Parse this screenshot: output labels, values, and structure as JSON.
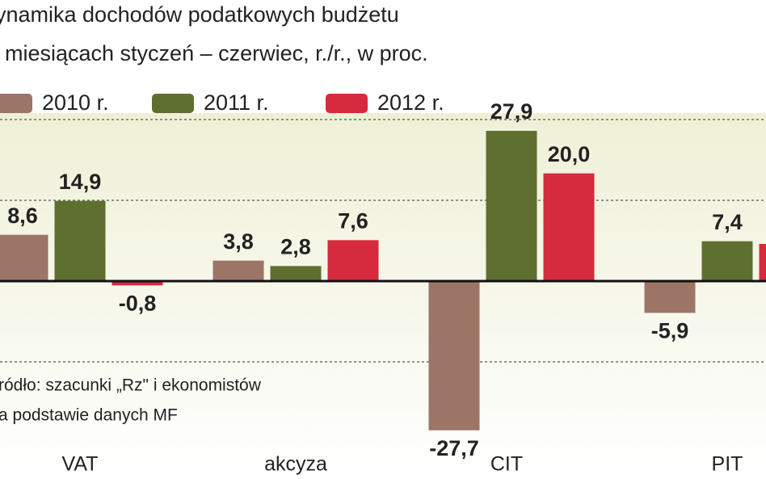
{
  "chart_data": {
    "type": "bar",
    "title": "ynamika dochodów podatkowych budżetu",
    "subtitle": "miesiącach styczeń – czerwiec, r./r., w proc.",
    "categories": [
      "VAT",
      "akcyza",
      "CIT",
      "PIT"
    ],
    "series": [
      {
        "name": "2010 r.",
        "color": "#9c7566",
        "values": [
          8.6,
          3.8,
          -27.7,
          -5.9
        ],
        "value_labels": [
          "8,6",
          "3,8",
          "-27,7",
          "-5,9"
        ]
      },
      {
        "name": "2011 r.",
        "color": "#5f6f2f",
        "values": [
          14.9,
          2.8,
          27.9,
          7.4
        ],
        "value_labels": [
          "14,9",
          "2,8",
          "27,9",
          "7,4"
        ]
      },
      {
        "name": "2012 r.",
        "color": "#d62a3f",
        "values": [
          -0.8,
          7.6,
          20.0,
          6.9
        ],
        "value_labels": [
          "-0,8",
          "7,6",
          "20,0",
          null
        ]
      }
    ],
    "ylim": [
      -30,
      30
    ],
    "yticks": [
      -15,
      15,
      30
    ],
    "grid": true,
    "source": [
      "ródło: szacunki „Rz\" i ekonomistów",
      "a podstawie danych MF"
    ]
  }
}
